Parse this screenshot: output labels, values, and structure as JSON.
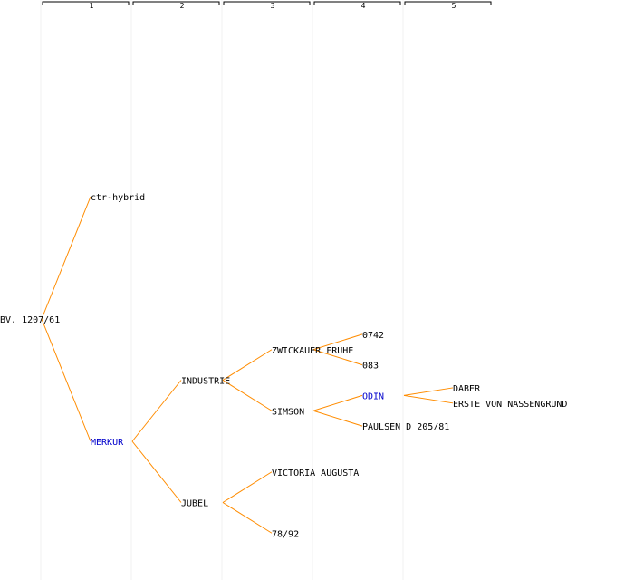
{
  "generations": [
    "1",
    "2",
    "3",
    "4",
    "5"
  ],
  "colors": {
    "edge": "#ff8c00",
    "column_line": "#f2f2f2",
    "header_bracket": "#000000",
    "text": "#000000",
    "highlight": "#0000cc"
  },
  "root": {
    "id": "bv",
    "label": "BV. 1207/61"
  },
  "nodes": [
    {
      "id": "ctr",
      "label": "ctr-hybrid",
      "parent": "bv"
    },
    {
      "id": "merkur",
      "label": "MERKUR",
      "parent": "bv",
      "highlight": true
    },
    {
      "id": "industrie",
      "label": "INDUSTRIE",
      "parent": "merkur"
    },
    {
      "id": "jubel",
      "label": "JUBEL",
      "parent": "merkur"
    },
    {
      "id": "zwickauer",
      "label": "ZWICKAUER FRUHE",
      "parent": "industrie"
    },
    {
      "id": "simson",
      "label": "SIMSON",
      "parent": "industrie"
    },
    {
      "id": "victoria",
      "label": "VICTORIA AUGUSTA",
      "parent": "jubel"
    },
    {
      "id": "n7892",
      "label": "78/92",
      "parent": "jubel"
    },
    {
      "id": "n0742",
      "label": "0742",
      "parent": "zwickauer"
    },
    {
      "id": "n083",
      "label": "083",
      "parent": "zwickauer"
    },
    {
      "id": "odin",
      "label": "ODIN",
      "parent": "simson",
      "highlight": true
    },
    {
      "id": "paulsen",
      "label": "PAULSEN D 205/81",
      "parent": "simson"
    },
    {
      "id": "daber",
      "label": "DABER",
      "parent": "odin"
    },
    {
      "id": "erste",
      "label": "ERSTE VON NASSENGRUND",
      "parent": "odin"
    }
  ]
}
